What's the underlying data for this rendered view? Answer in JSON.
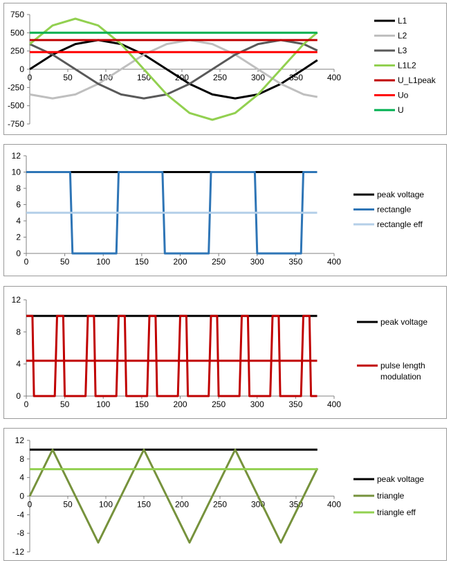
{
  "chart_data": [
    {
      "type": "line",
      "xlim": [
        0,
        400
      ],
      "ylim": [
        -750,
        750
      ],
      "xticks": [
        0,
        50,
        100,
        150,
        200,
        250,
        300,
        350,
        400
      ],
      "yticks": [
        750,
        500,
        250,
        0,
        -250,
        -500,
        -750
      ],
      "xtick_labels": [
        "0",
        "50",
        "100",
        "150",
        "200",
        "250",
        "300",
        "350",
        "400"
      ],
      "ytick_labels": [
        "750",
        "500",
        "250",
        "0",
        "-250",
        "-500",
        "-750"
      ],
      "grid": false,
      "legend_position": "right",
      "series": [
        {
          "name": "L1",
          "color": "#000000",
          "x": [
            0,
            30,
            60,
            90,
            120,
            150,
            180,
            210,
            240,
            270,
            300,
            330,
            360,
            378
          ],
          "y": [
            0,
            200,
            346,
            400,
            346,
            200,
            0,
            -200,
            -346,
            -400,
            -346,
            -200,
            0,
            124
          ]
        },
        {
          "name": "L2",
          "color": "#bfbfbf",
          "x": [
            0,
            30,
            60,
            90,
            120,
            150,
            180,
            210,
            240,
            270,
            300,
            330,
            360,
            378
          ],
          "y": [
            -346,
            -400,
            -346,
            -200,
            0,
            200,
            346,
            400,
            346,
            200,
            0,
            -200,
            -346,
            -380
          ]
        },
        {
          "name": "L3",
          "color": "#595959",
          "x": [
            0,
            30,
            60,
            90,
            120,
            150,
            180,
            210,
            240,
            270,
            300,
            330,
            360,
            378
          ],
          "y": [
            346,
            200,
            0,
            -200,
            -346,
            -400,
            -346,
            -200,
            0,
            200,
            346,
            400,
            346,
            256
          ]
        },
        {
          "name": "L1L2",
          "color": "#92d050",
          "x": [
            0,
            30,
            60,
            90,
            120,
            150,
            180,
            210,
            240,
            270,
            300,
            330,
            360,
            378
          ],
          "y": [
            346,
            600,
            693,
            600,
            346,
            0,
            -346,
            -600,
            -693,
            -600,
            -346,
            0,
            346,
            504
          ]
        },
        {
          "name": "U_L1peak",
          "color": "#c00000",
          "x": [
            0,
            378
          ],
          "y": [
            400,
            400
          ]
        },
        {
          "name": "Uo",
          "color": "#ff0000",
          "x": [
            0,
            378
          ],
          "y": [
            235,
            235
          ]
        },
        {
          "name": "U",
          "color": "#00b050",
          "x": [
            0,
            378
          ],
          "y": [
            500,
            500
          ]
        }
      ]
    },
    {
      "type": "line",
      "xlim": [
        0,
        400
      ],
      "ylim": [
        0,
        12
      ],
      "xticks": [
        0,
        50,
        100,
        150,
        200,
        250,
        300,
        350,
        400
      ],
      "yticks": [
        0,
        2,
        4,
        6,
        8,
        10,
        12
      ],
      "xtick_labels": [
        "0",
        "50",
        "100",
        "150",
        "200",
        "250",
        "300",
        "350",
        "400"
      ],
      "ytick_labels": [
        "0",
        "2",
        "4",
        "6",
        "8",
        "10",
        "12"
      ],
      "grid": false,
      "legend_position": "right",
      "series": [
        {
          "name": "peak voltage",
          "color": "#000000",
          "x": [
            0,
            378
          ],
          "y": [
            10,
            10
          ]
        },
        {
          "name": "rectangle",
          "color": "#2e75b6",
          "x": [
            0,
            57,
            60,
            117,
            120,
            177,
            180,
            237,
            240,
            297,
            300,
            357,
            360,
            378
          ],
          "y": [
            10,
            10,
            0,
            0,
            10,
            10,
            0,
            0,
            10,
            10,
            0,
            0,
            10,
            10
          ]
        },
        {
          "name": "rectangle eff",
          "color": "#b4cfe8",
          "x": [
            0,
            378
          ],
          "y": [
            5,
            5
          ]
        }
      ]
    },
    {
      "type": "line",
      "xlim": [
        0,
        400
      ],
      "ylim": [
        0,
        12
      ],
      "xticks": [
        0,
        50,
        100,
        150,
        200,
        250,
        300,
        350,
        400
      ],
      "yticks": [
        0,
        4,
        8,
        12
      ],
      "xtick_labels": [
        "0",
        "50",
        "100",
        "150",
        "200",
        "250",
        "300",
        "350",
        "400"
      ],
      "ytick_labels": [
        "0",
        "4",
        "8",
        "12"
      ],
      "grid": false,
      "legend_position": "right",
      "series": [
        {
          "name": "peak voltage",
          "color": "#000000",
          "x": [
            0,
            378
          ],
          "y": [
            10,
            10
          ]
        },
        {
          "name": "pulse length modulation",
          "color": "#c00000",
          "x": [
            0,
            8,
            10,
            37,
            40,
            48,
            50,
            77,
            80,
            88,
            90,
            117,
            120,
            128,
            130,
            157,
            160,
            168,
            170,
            197,
            200,
            208,
            210,
            237,
            240,
            248,
            250,
            277,
            280,
            288,
            290,
            317,
            320,
            328,
            330,
            357,
            360,
            368,
            370,
            378
          ],
          "y": [
            10,
            10,
            0,
            0,
            10,
            10,
            0,
            0,
            10,
            10,
            0,
            0,
            10,
            10,
            0,
            0,
            10,
            10,
            0,
            0,
            10,
            10,
            0,
            0,
            10,
            10,
            0,
            0,
            10,
            10,
            0,
            0,
            10,
            10,
            0,
            0,
            10,
            10,
            0,
            0
          ]
        },
        {
          "name": "",
          "color": "#c00000",
          "x": [
            0,
            378
          ],
          "y": [
            4.4,
            4.4
          ]
        }
      ]
    },
    {
      "type": "line",
      "xlim": [
        0,
        400
      ],
      "ylim": [
        -12,
        12
      ],
      "xticks": [
        0,
        50,
        100,
        150,
        200,
        250,
        300,
        350,
        400
      ],
      "yticks": [
        12,
        8,
        4,
        0,
        -4,
        -8,
        -12
      ],
      "xtick_labels": [
        "0",
        "50",
        "100",
        "150",
        "200",
        "250",
        "300",
        "350",
        "400"
      ],
      "ytick_labels": [
        "12",
        "8",
        "4",
        "0",
        "-4",
        "-8",
        "-12"
      ],
      "grid": false,
      "legend_position": "right",
      "series": [
        {
          "name": "peak voltage",
          "color": "#000000",
          "x": [
            0,
            378
          ],
          "y": [
            10,
            10
          ]
        },
        {
          "name": "triangle",
          "color": "#76923c",
          "x": [
            0,
            30,
            90,
            150,
            210,
            270,
            330,
            378
          ],
          "y": [
            0,
            10,
            -10,
            10,
            -10,
            10,
            -10,
            6
          ]
        },
        {
          "name": "triangle eff",
          "color": "#92d050",
          "x": [
            0,
            378
          ],
          "y": [
            5.8,
            5.8
          ]
        }
      ]
    }
  ]
}
